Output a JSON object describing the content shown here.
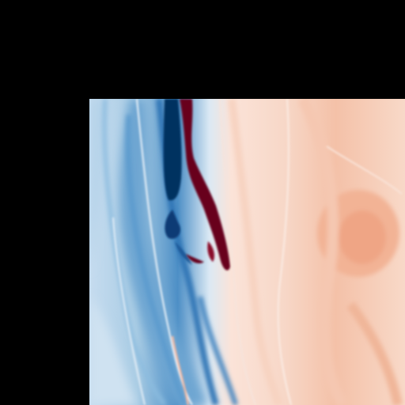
{
  "figure": {
    "background_color": "#000000",
    "colormap": "RdBu_r",
    "colormap_stops": [
      "#053061",
      "#2166ac",
      "#4393c3",
      "#92c5de",
      "#d1e5f0",
      "#f7f7f7",
      "#fddbc7",
      "#f4a582",
      "#d6604d",
      "#b2182b",
      "#67001f"
    ]
  }
}
